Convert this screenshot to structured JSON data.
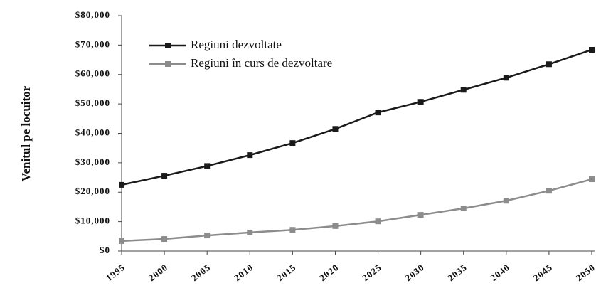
{
  "chart_data": {
    "type": "line",
    "y_label": "Venitul pe locuitor",
    "x": [
      1995,
      2000,
      2005,
      2010,
      2015,
      2020,
      2025,
      2030,
      2035,
      2040,
      2045,
      2050
    ],
    "series": [
      {
        "name": "Regiuni dezvoltate",
        "color": "#1a1a1a",
        "values": [
          22500,
          25600,
          28900,
          32600,
          36700,
          41500,
          47100,
          50700,
          54800,
          58900,
          63500,
          68400
        ]
      },
      {
        "name": "Regiuni în curs de dezvoltare",
        "color": "#8c8c8c",
        "values": [
          3400,
          4100,
          5300,
          6300,
          7200,
          8500,
          10100,
          12300,
          14500,
          17100,
          20500,
          24400
        ]
      }
    ],
    "xlim": [
      1995,
      2050
    ],
    "xticks": [
      1995,
      2000,
      2005,
      2010,
      2015,
      2020,
      2025,
      2030,
      2035,
      2040,
      2045,
      2050
    ],
    "ylim": [
      0,
      80000
    ],
    "yticks": [
      {
        "value": 0,
        "label": "$0"
      },
      {
        "value": 10000,
        "label": "$10,000"
      },
      {
        "value": 20000,
        "label": "$20,000"
      },
      {
        "value": 30000,
        "label": "$30,000"
      },
      {
        "value": 40000,
        "label": "$40,000"
      },
      {
        "value": 50000,
        "label": "$50,000"
      },
      {
        "value": 60000,
        "label": "$60,000"
      },
      {
        "value": 70000,
        "label": "$70,000"
      },
      {
        "value": 80000,
        "label": "$80,000"
      }
    ],
    "legend": "upper left",
    "grid": false
  }
}
